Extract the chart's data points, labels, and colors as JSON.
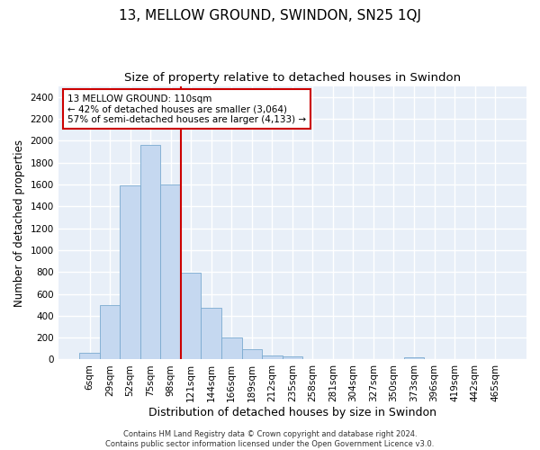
{
  "title": "13, MELLOW GROUND, SWINDON, SN25 1QJ",
  "subtitle": "Size of property relative to detached houses in Swindon",
  "xlabel": "Distribution of detached houses by size in Swindon",
  "ylabel": "Number of detached properties",
  "categories": [
    "6sqm",
    "29sqm",
    "52sqm",
    "75sqm",
    "98sqm",
    "121sqm",
    "144sqm",
    "166sqm",
    "189sqm",
    "212sqm",
    "235sqm",
    "258sqm",
    "281sqm",
    "304sqm",
    "327sqm",
    "350sqm",
    "373sqm",
    "396sqm",
    "419sqm",
    "442sqm",
    "465sqm"
  ],
  "values": [
    60,
    500,
    1590,
    1960,
    1600,
    790,
    470,
    200,
    95,
    35,
    25,
    5,
    5,
    5,
    5,
    5,
    20,
    0,
    0,
    0,
    0
  ],
  "bar_color": "#c5d8f0",
  "bar_edge_color": "#7aaad0",
  "vline_x": 4.5,
  "vline_color": "#cc0000",
  "annotation_text": "13 MELLOW GROUND: 110sqm\n← 42% of detached houses are smaller (3,064)\n57% of semi-detached houses are larger (4,133) →",
  "annotation_box_color": "#ffffff",
  "annotation_box_edge": "#cc0000",
  "ylim": [
    0,
    2500
  ],
  "yticks": [
    0,
    200,
    400,
    600,
    800,
    1000,
    1200,
    1400,
    1600,
    1800,
    2000,
    2200,
    2400
  ],
  "bg_color": "#e8eff8",
  "grid_color": "#ffffff",
  "footer": "Contains HM Land Registry data © Crown copyright and database right 2024.\nContains public sector information licensed under the Open Government Licence v3.0.",
  "title_fontsize": 11,
  "subtitle_fontsize": 9.5,
  "xlabel_fontsize": 9,
  "ylabel_fontsize": 8.5,
  "tick_fontsize": 7.5,
  "ann_fontsize": 7.5,
  "footer_fontsize": 6
}
